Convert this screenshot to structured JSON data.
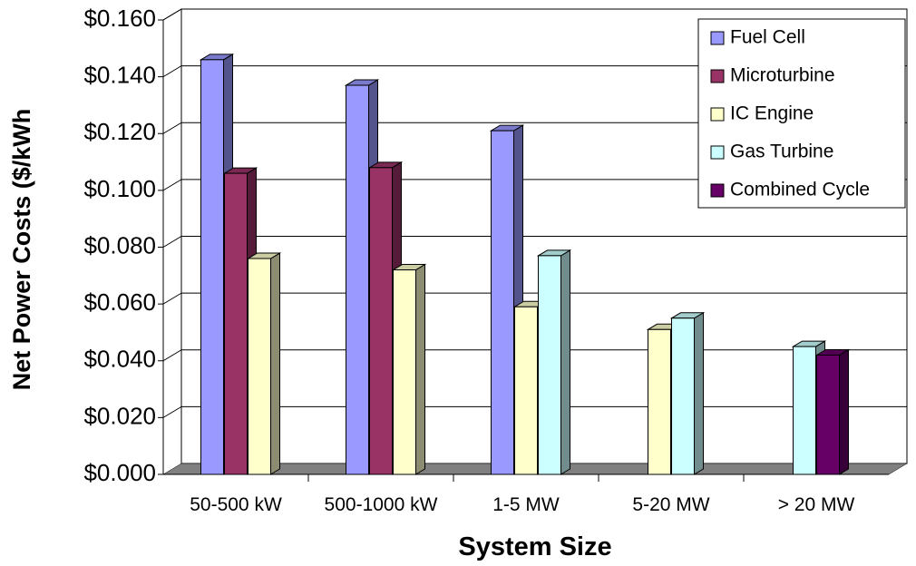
{
  "chart_data": {
    "type": "bar",
    "xlabel": "System Size",
    "ylabel": "Net Power Costs ($/kWh",
    "ylim": [
      0,
      0.16
    ],
    "yticks": [
      "$0.000",
      "$0.020",
      "$0.040",
      "$0.060",
      "$0.080",
      "$0.100",
      "$0.120",
      "$0.140",
      "$0.160"
    ],
    "grid": true,
    "legend_position": "top-right",
    "categories": [
      "50-500 kW",
      "500-1000 kW",
      "1-5 MW",
      "5-20 MW",
      "> 20 MW"
    ],
    "series": [
      {
        "name": "Fuel Cell",
        "color": "#9999ff",
        "values": [
          0.146,
          0.137,
          0.121,
          null,
          null
        ]
      },
      {
        "name": "Microturbine",
        "color": "#993366",
        "values": [
          0.106,
          0.108,
          null,
          null,
          null
        ]
      },
      {
        "name": "IC Engine",
        "color": "#ffffcc",
        "values": [
          0.076,
          0.072,
          0.059,
          0.051,
          null
        ]
      },
      {
        "name": "Gas Turbine",
        "color": "#ccffff",
        "values": [
          null,
          null,
          0.077,
          0.055,
          0.045
        ]
      },
      {
        "name": "Combined Cycle",
        "color": "#660066",
        "values": [
          null,
          null,
          null,
          null,
          0.042
        ]
      }
    ]
  }
}
